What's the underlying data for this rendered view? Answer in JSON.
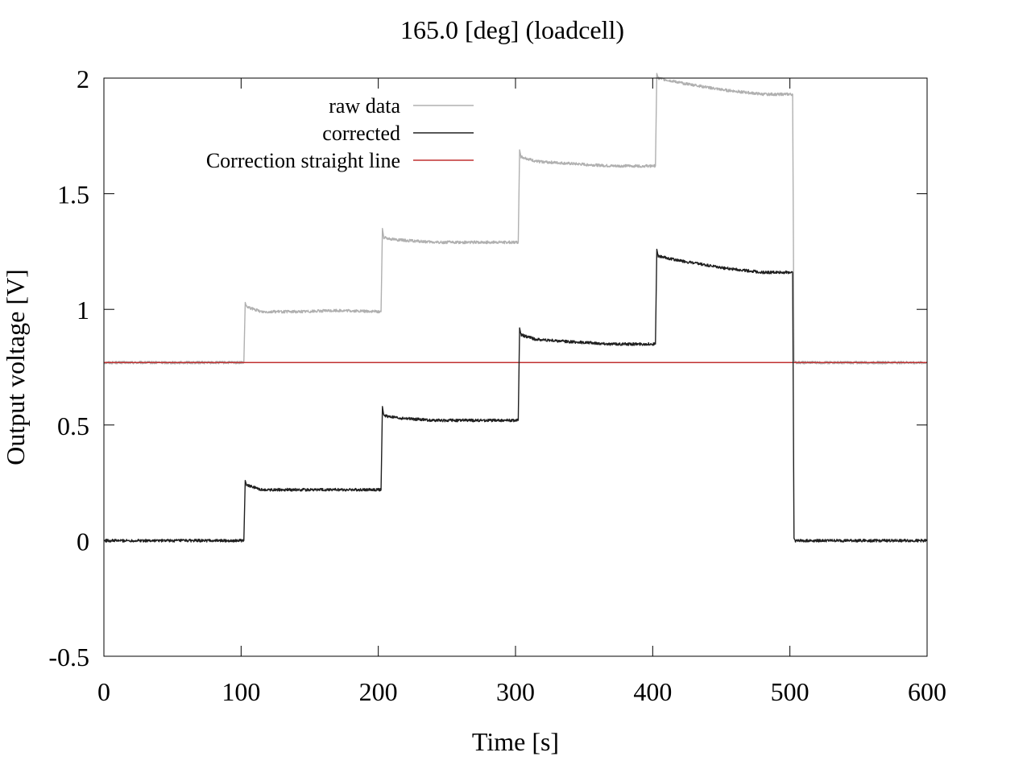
{
  "chart_data": {
    "type": "line",
    "title": "165.0 [deg] (loadcell)",
    "xlabel": "Time [s]",
    "ylabel": "Output voltage [V]",
    "xlim": [
      0,
      600
    ],
    "ylim": [
      -0.5,
      2
    ],
    "xticks": [
      0,
      100,
      200,
      300,
      400,
      500,
      600
    ],
    "xtick_labels": [
      "0",
      "100",
      "200",
      "300",
      "400",
      "500",
      "600"
    ],
    "yticks": [
      -0.5,
      0,
      0.5,
      1,
      1.5,
      2
    ],
    "ytick_labels": [
      "-0.5",
      "0",
      "0.5",
      "1",
      "1.5",
      "2"
    ],
    "grid": false,
    "legend_position": "top-left",
    "series": [
      {
        "name": "raw data",
        "color": "#b0b0b0",
        "x": [
          0,
          102,
          103,
          104,
          115,
          140,
          170,
          202,
          203,
          204,
          215,
          240,
          270,
          302,
          303,
          304,
          315,
          340,
          370,
          402,
          403,
          404,
          420,
          450,
          480,
          502,
          503,
          504,
          520,
          560,
          600
        ],
        "y": [
          0.77,
          0.77,
          1.03,
          1.01,
          0.99,
          0.99,
          0.995,
          0.99,
          1.35,
          1.31,
          1.3,
          1.29,
          1.29,
          1.29,
          1.69,
          1.66,
          1.64,
          1.63,
          1.62,
          1.62,
          2.02,
          2.0,
          1.98,
          1.95,
          1.93,
          1.93,
          0.78,
          0.77,
          0.77,
          0.77,
          0.77
        ]
      },
      {
        "name": "corrected",
        "color": "#202020",
        "x": [
          0,
          102,
          103,
          104,
          115,
          140,
          170,
          202,
          203,
          204,
          215,
          240,
          270,
          302,
          303,
          304,
          315,
          340,
          370,
          402,
          403,
          404,
          420,
          450,
          480,
          502,
          503,
          504,
          520,
          560,
          600
        ],
        "y": [
          0,
          0,
          0.26,
          0.24,
          0.22,
          0.22,
          0.22,
          0.22,
          0.58,
          0.54,
          0.53,
          0.52,
          0.52,
          0.52,
          0.92,
          0.89,
          0.87,
          0.86,
          0.85,
          0.85,
          1.26,
          1.23,
          1.21,
          1.18,
          1.16,
          1.16,
          0.01,
          0,
          0,
          0,
          0
        ]
      },
      {
        "name": "Correction straight line",
        "color": "#c03030",
        "x": [
          0,
          600
        ],
        "y": [
          0.77,
          0.77
        ]
      }
    ]
  }
}
